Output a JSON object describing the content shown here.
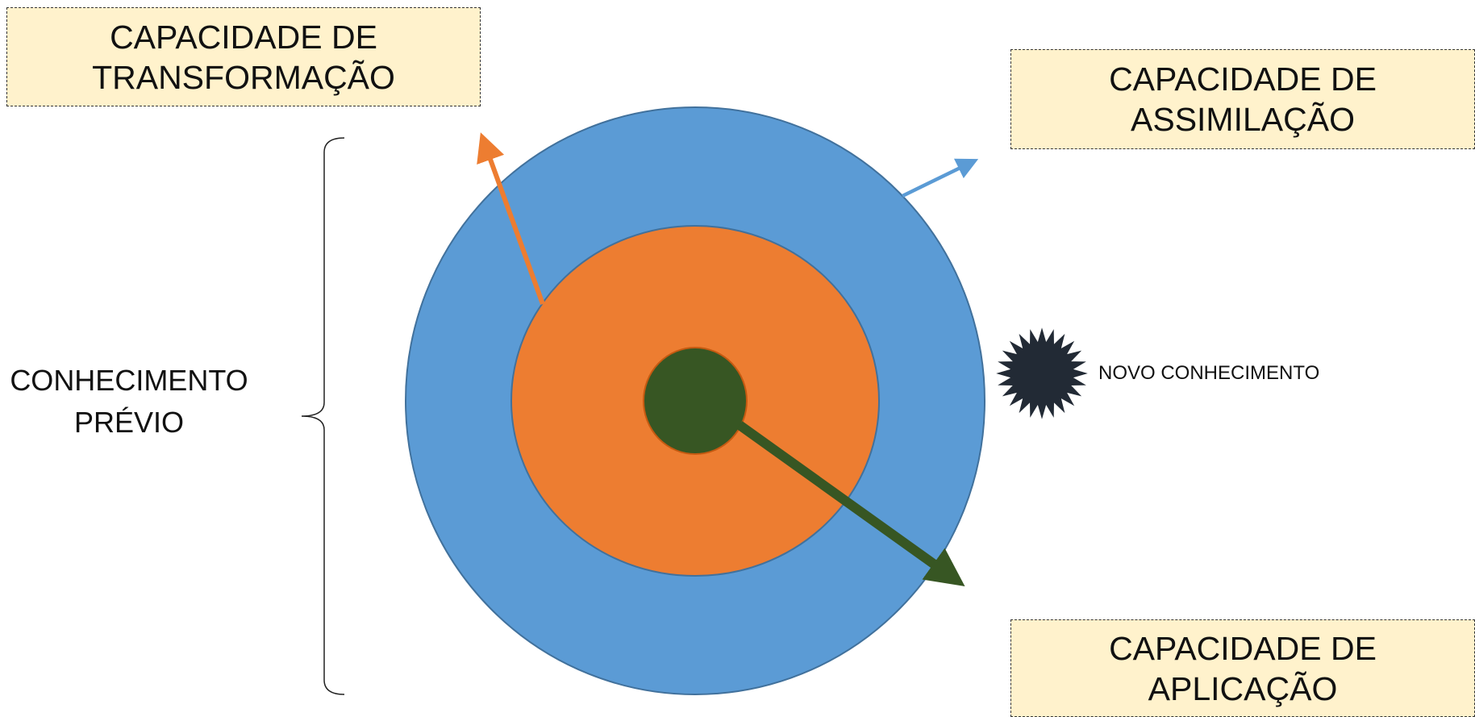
{
  "diagram": {
    "boxes": {
      "transformacao": {
        "line1": "CAPACIDADE DE",
        "line2": "TRANSFORMAÇÃO"
      },
      "assimilacao": {
        "line1": "CAPACIDADE DE",
        "line2": "ASSIMILAÇÃO"
      },
      "aplicacao": {
        "line1": "CAPACIDADE DE",
        "line2": "APLICAÇÃO"
      }
    },
    "labels": {
      "conhecimento_previo": {
        "line1": "CONHECIMENTO",
        "line2": "PRÉVIO"
      },
      "novo_conhecimento": "NOVO CONHECIMENTO"
    },
    "icons": {
      "new_knowledge": "starburst-icon",
      "bracket": "curly-brace-icon"
    },
    "colors": {
      "outer_circle": "#5b9bd5",
      "middle_circle": "#ed7d31",
      "inner_circle": "#375623",
      "circle_stroke": "#41719c",
      "box_fill": "#fff2cc",
      "starburst": "#222a35",
      "arrow_assimilacao": "#5b9bd5",
      "arrow_transformacao": "#ed7d31",
      "arrow_aplicacao": "#375623"
    }
  }
}
